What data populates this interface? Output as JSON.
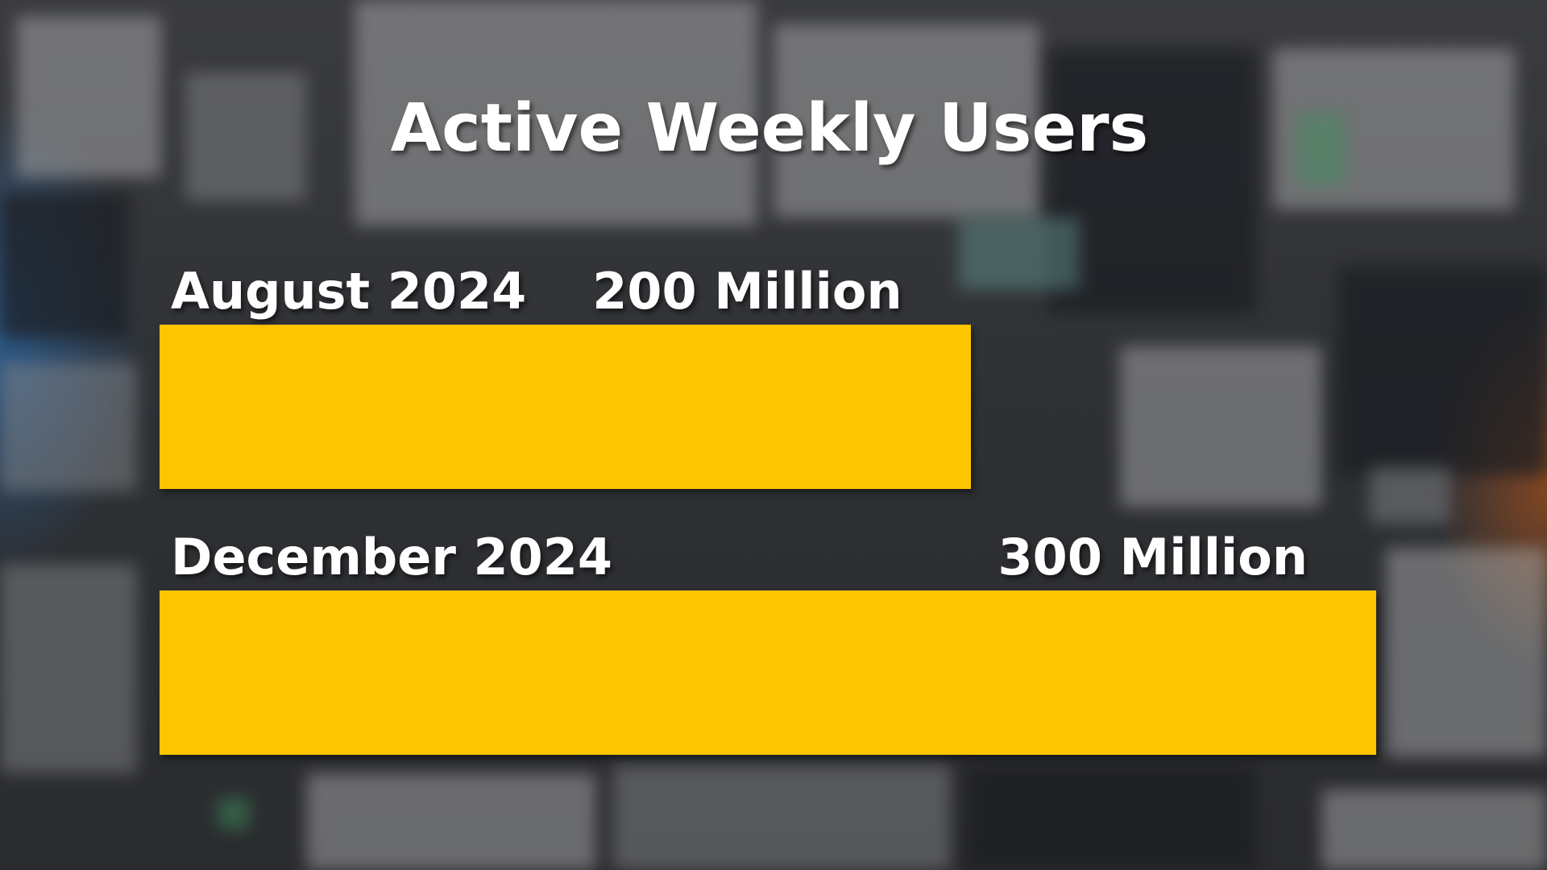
{
  "colors": {
    "bar": "#fdc400",
    "text": "#ffffff"
  },
  "chart_data": {
    "type": "bar",
    "orientation": "horizontal",
    "title": "Active Weekly Users",
    "categories": [
      "August 2024",
      "December 2024"
    ],
    "values": [
      200,
      300
    ],
    "value_labels": [
      "200 Million",
      "300 Million"
    ],
    "xlim": [
      0,
      300
    ],
    "grid": false,
    "legend": "none"
  }
}
